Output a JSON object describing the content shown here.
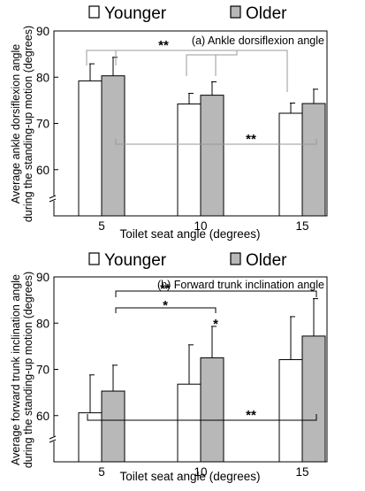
{
  "chart_data": [
    {
      "type": "bar",
      "title": "(a) Ankle dorsiflexion angle",
      "xlabel": "Toilet seat angle (degrees)",
      "ylabel": "Average ankle dorsiflexion angle during the standing-up motion (degrees)",
      "categories": [
        "5",
        "10",
        "15"
      ],
      "ylim": [
        50,
        90
      ],
      "yticks": [
        "60",
        "70",
        "80",
        "90"
      ],
      "axis_break": true,
      "legend_position": "top",
      "grid": false,
      "series": [
        {
          "name": "Younger",
          "values": [
            79.2,
            74.2,
            72.2
          ],
          "errors": [
            3.7,
            2.3,
            2.2
          ],
          "color": "#ffffff"
        },
        {
          "name": "Older",
          "values": [
            80.3,
            76.1,
            74.3
          ],
          "errors": [
            4.0,
            2.9,
            3.1
          ],
          "color": "#b8b8b8"
        }
      ],
      "annotations": [
        {
          "text": "**",
          "between": "5 vs 10 & 15 (both groups)"
        },
        {
          "text": "**",
          "between": "Younger vs Older (all angles)"
        }
      ]
    },
    {
      "type": "bar",
      "title": "(b) Forward trunk inclination angle",
      "xlabel": "Toilet seat angle (degrees)",
      "ylabel": "Average forward trunk inclination angle during the standing-up motion (degrees)",
      "categories": [
        "5",
        "10",
        "15"
      ],
      "ylim": [
        50,
        90
      ],
      "yticks": [
        "60",
        "70",
        "80",
        "90"
      ],
      "axis_break": true,
      "legend_position": "top",
      "grid": false,
      "series": [
        {
          "name": "Younger",
          "values": [
            60.6,
            66.8,
            72.1
          ],
          "errors": [
            8.2,
            8.5,
            9.3
          ],
          "color": "#ffffff"
        },
        {
          "name": "Older",
          "values": [
            65.3,
            72.5,
            77.2
          ],
          "errors": [
            5.6,
            6.8,
            8.1
          ],
          "color": "#b8b8b8"
        }
      ],
      "annotations": [
        {
          "text": "**",
          "between": "Older 5 vs Older 15"
        },
        {
          "text": "*",
          "between": "Older 5 vs Older 10"
        },
        {
          "text": "*",
          "between": "Younger 10 vs Older 10"
        },
        {
          "text": "**",
          "between": "5 vs 15 (both groups)"
        }
      ]
    }
  ]
}
